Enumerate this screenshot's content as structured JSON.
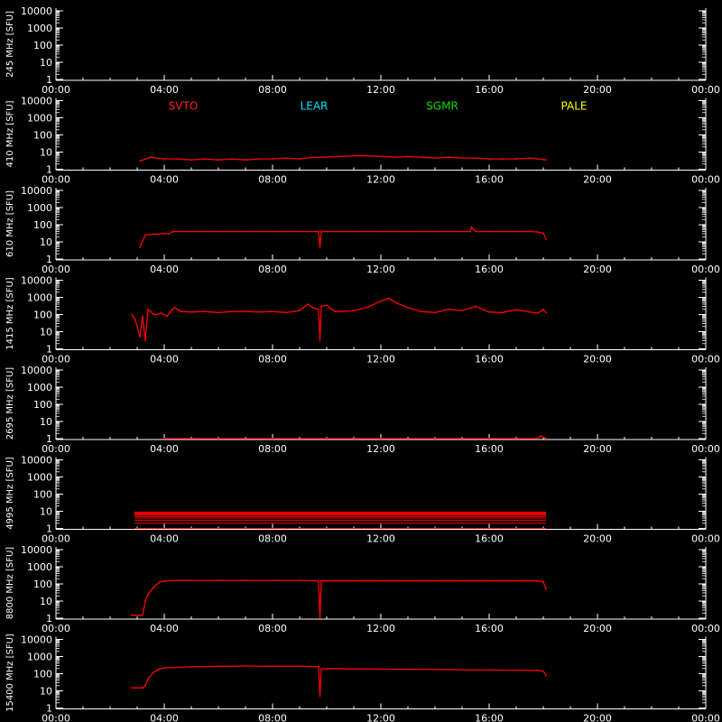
{
  "axis_color": "#ffffff",
  "data_color": "#ff0000",
  "chart_data": [
    {
      "type": "line",
      "ylabel": "245 MHz [SFU]",
      "x_ticks": [
        "00:00",
        "04:00",
        "08:00",
        "12:00",
        "16:00",
        "20:00",
        "00:00"
      ],
      "y_ticks": [
        "1",
        "10",
        "100",
        "1000",
        "10000"
      ],
      "xlim_hours": [
        0,
        24
      ],
      "ylim": [
        1,
        10000
      ],
      "y_scale": "log",
      "series": []
    },
    {
      "type": "line",
      "ylabel": "410 MHz [SFU]",
      "x_ticks": [
        "00:00",
        "04:00",
        "08:00",
        "12:00",
        "16:00",
        "20:00",
        "00:00"
      ],
      "y_ticks": [
        "1",
        "10",
        "100",
        "1000",
        "10000"
      ],
      "xlim_hours": [
        0,
        24
      ],
      "ylim": [
        1,
        10000
      ],
      "y_scale": "log",
      "legend": [
        {
          "label": "SVTO",
          "color": "#ff2020"
        },
        {
          "label": "LEAR",
          "color": "#00e0ff"
        },
        {
          "label": "SGMR",
          "color": "#00e000"
        },
        {
          "label": "PALE",
          "color": "#ffff00"
        }
      ],
      "series": [
        {
          "x": [
            3.1,
            3.5,
            4.0,
            4.5,
            5.0,
            5.5,
            6.0,
            6.5,
            7.0,
            7.5,
            8.0,
            8.5,
            9.0,
            9.5,
            10.0,
            10.5,
            11.0,
            11.5,
            12.0,
            12.5,
            13.0,
            13.5,
            14.0,
            14.5,
            15.0,
            15.5,
            16.0,
            16.5,
            17.0,
            17.5,
            18.1
          ],
          "y": [
            3,
            5,
            4,
            4,
            3.5,
            4,
            3.5,
            4,
            3.5,
            4,
            4,
            4.5,
            4,
            5,
            5,
            5.5,
            6,
            6,
            5.5,
            5,
            5.5,
            5,
            4.5,
            5,
            4.5,
            4.5,
            4,
            4,
            4,
            4.5,
            3.5
          ]
        }
      ]
    },
    {
      "type": "line",
      "ylabel": "610 MHz [SFU]",
      "x_ticks": [
        "00:00",
        "04:00",
        "08:00",
        "12:00",
        "16:00",
        "20:00",
        "00:00"
      ],
      "y_ticks": [
        "1",
        "10",
        "100",
        "1000",
        "10000"
      ],
      "xlim_hours": [
        0,
        24
      ],
      "ylim": [
        1,
        10000
      ],
      "y_scale": "log",
      "series": [
        {
          "x": [
            3.1,
            3.3,
            3.6,
            4.0,
            4.2,
            4.3,
            5.0,
            6.0,
            7.0,
            8.0,
            9.0,
            9.7,
            9.75,
            9.8,
            10.0,
            11.0,
            12.0,
            13.0,
            14.0,
            15.0,
            15.3,
            15.35,
            15.5,
            16.0,
            17.0,
            17.5,
            17.8,
            18.0,
            18.1
          ],
          "y": [
            5,
            25,
            28,
            30,
            30,
            40,
            40,
            40,
            40,
            40,
            40,
            40,
            5,
            40,
            40,
            40,
            40,
            40,
            40,
            40,
            40,
            70,
            40,
            40,
            40,
            40,
            38,
            32,
            15
          ]
        }
      ]
    },
    {
      "type": "line",
      "ylabel": "1415 MHz [SFU]",
      "x_ticks": [
        "00:00",
        "04:00",
        "08:00",
        "12:00",
        "16:00",
        "20:00",
        "00:00"
      ],
      "y_ticks": [
        "1",
        "10",
        "100",
        "1000",
        "10000"
      ],
      "xlim_hours": [
        0,
        24
      ],
      "ylim": [
        1,
        10000
      ],
      "y_scale": "log",
      "series": [
        {
          "x": [
            2.8,
            2.9,
            3.0,
            3.1,
            3.2,
            3.3,
            3.4,
            3.5,
            3.6,
            3.7,
            3.9,
            4.1,
            4.3,
            4.4,
            4.6,
            5.0,
            5.5,
            6.0,
            6.5,
            7.0,
            7.5,
            8.0,
            8.5,
            9.0,
            9.3,
            9.5,
            9.7,
            9.75,
            9.8,
            10.0,
            10.3,
            10.6,
            11.0,
            11.5,
            12.0,
            12.3,
            12.6,
            13.0,
            13.5,
            14.0,
            14.5,
            15.0,
            15.5,
            16.0,
            16.5,
            17.0,
            17.5,
            17.8,
            18.0,
            18.1
          ],
          "y": [
            100,
            60,
            20,
            5,
            80,
            3,
            200,
            150,
            100,
            100,
            120,
            80,
            200,
            250,
            150,
            140,
            150,
            130,
            150,
            150,
            140,
            150,
            130,
            170,
            400,
            250,
            200,
            3,
            300,
            350,
            150,
            150,
            170,
            260,
            600,
            900,
            450,
            250,
            150,
            130,
            200,
            170,
            300,
            140,
            130,
            190,
            140,
            120,
            200,
            130
          ]
        }
      ]
    },
    {
      "type": "line",
      "ylabel": "2695 MHz [SFU]",
      "x_ticks": [
        "00:00",
        "04:00",
        "08:00",
        "12:00",
        "16:00",
        "20:00",
        "00:00"
      ],
      "y_ticks": [
        "1",
        "10",
        "100",
        "1000",
        "10000"
      ],
      "xlim_hours": [
        0,
        24
      ],
      "ylim": [
        1,
        10000
      ],
      "y_scale": "log",
      "series": [
        {
          "x": [
            4.0,
            6.0,
            8.0,
            10.0,
            12.0,
            14.0,
            16.0,
            17.8,
            17.9,
            18.0,
            18.1
          ],
          "y": [
            1,
            1,
            1,
            1,
            1,
            1,
            1,
            1,
            1.4,
            1.2,
            1
          ]
        }
      ]
    },
    {
      "type": "scatter",
      "ylabel": "4995 MHz [SFU]",
      "x_ticks": [
        "00:00",
        "04:00",
        "08:00",
        "12:00",
        "16:00",
        "20:00",
        "00:00"
      ],
      "y_ticks": [
        "1",
        "10",
        "100",
        "1000",
        "10000"
      ],
      "xlim_hours": [
        0,
        24
      ],
      "ylim": [
        1,
        10000
      ],
      "y_scale": "log",
      "band": {
        "x_start": 2.9,
        "x_end": 18.1,
        "levels": [
          1,
          2,
          3,
          4,
          5,
          6,
          7,
          8,
          9
        ]
      },
      "series": []
    },
    {
      "type": "line",
      "ylabel": "8800 MHz [SFU]",
      "x_ticks": [
        "00:00",
        "04:00",
        "08:00",
        "12:00",
        "16:00",
        "20:00",
        "00:00"
      ],
      "y_ticks": [
        "1",
        "10",
        "100",
        "1000",
        "10000"
      ],
      "xlim_hours": [
        0,
        24
      ],
      "ylim": [
        1,
        10000
      ],
      "y_scale": "log",
      "series": [
        {
          "x": [
            2.8,
            3.2,
            3.3,
            3.4,
            3.6,
            3.8,
            4.0,
            4.5,
            5.0,
            6.0,
            7.0,
            8.0,
            9.0,
            9.7,
            9.75,
            9.8,
            10.0,
            11.0,
            12.0,
            13.0,
            14.0,
            15.0,
            16.0,
            17.0,
            17.8,
            18.0,
            18.1
          ],
          "y": [
            1.5,
            1.5,
            10,
            25,
            60,
            120,
            150,
            160,
            160,
            160,
            160,
            160,
            160,
            150,
            1,
            150,
            150,
            150,
            150,
            150,
            150,
            150,
            150,
            150,
            150,
            130,
            50
          ]
        }
      ]
    },
    {
      "type": "line",
      "ylabel": "15400 MHz [SFU]",
      "x_ticks": [
        "00:00",
        "04:00",
        "08:00",
        "12:00",
        "16:00",
        "20:00",
        "00:00"
      ],
      "y_ticks": [
        "1",
        "10",
        "100",
        "1000",
        "10000"
      ],
      "xlim_hours": [
        0,
        24
      ],
      "ylim": [
        1,
        10000
      ],
      "y_scale": "log",
      "series": [
        {
          "x": [
            2.8,
            3.2,
            3.3,
            3.4,
            3.6,
            3.8,
            4.0,
            5.0,
            6.0,
            7.0,
            8.0,
            9.0,
            9.7,
            9.75,
            9.8,
            10.0,
            11.0,
            12.0,
            13.0,
            14.0,
            15.0,
            16.0,
            17.0,
            17.8,
            18.0,
            18.1
          ],
          "y": [
            15,
            15,
            20,
            50,
            120,
            180,
            220,
            250,
            270,
            280,
            270,
            270,
            260,
            5,
            190,
            200,
            190,
            185,
            180,
            175,
            170,
            165,
            160,
            155,
            140,
            80
          ]
        }
      ]
    }
  ]
}
